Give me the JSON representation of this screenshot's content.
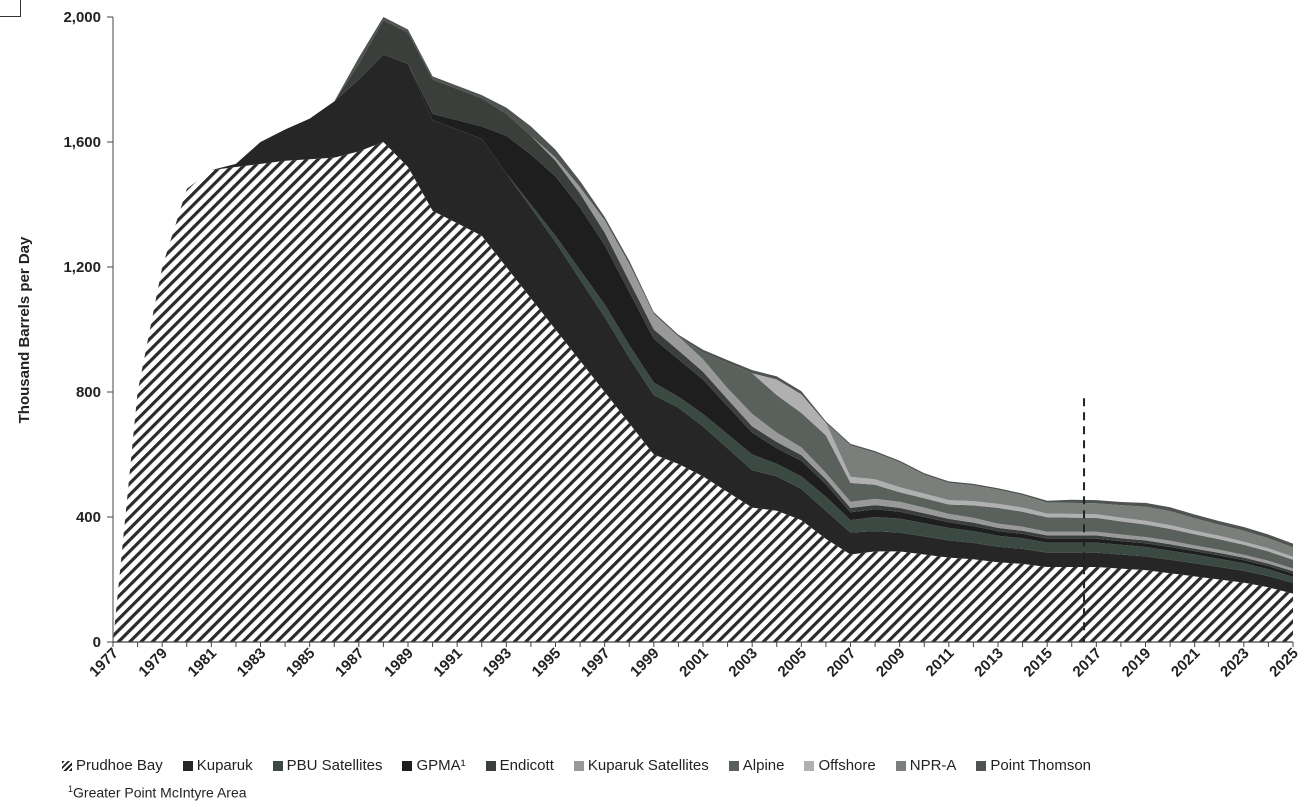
{
  "chart_data": {
    "type": "area",
    "stacked": true,
    "ylabel": "Thousand Barrels per Day",
    "xlabel": "",
    "ylim": [
      0,
      2000
    ],
    "yticks": [
      "0",
      "400",
      "800",
      "1,200",
      "1,600",
      "2,000"
    ],
    "ytick_values": [
      0,
      400,
      800,
      1200,
      1600,
      2000
    ],
    "xticks": [
      "1977",
      "1979",
      "1981",
      "1983",
      "1985",
      "1987",
      "1989",
      "1991",
      "1993",
      "1995",
      "1997",
      "1999",
      "2001",
      "2003",
      "2005",
      "2007",
      "2009",
      "2011",
      "2013",
      "2015",
      "2017",
      "2019",
      "2021",
      "2023",
      "2025"
    ],
    "x": [
      1977,
      1978,
      1979,
      1980,
      1981,
      1982,
      1983,
      1984,
      1985,
      1986,
      1987,
      1988,
      1989,
      1990,
      1991,
      1992,
      1993,
      1994,
      1995,
      1996,
      1997,
      1998,
      1999,
      2000,
      2001,
      2002,
      2003,
      2004,
      2005,
      2006,
      2007,
      2008,
      2009,
      2010,
      2011,
      2012,
      2013,
      2014,
      2015,
      2016,
      2017,
      2018,
      2019,
      2020,
      2021,
      2022,
      2023,
      2024,
      2025
    ],
    "forecast_start": 2016.5,
    "grid": false,
    "legend_position": "bottom",
    "series": [
      {
        "name": "Prudhoe Bay",
        "color": "#2a2a2a",
        "pattern": "hatch",
        "values": [
          0,
          800,
          1200,
          1450,
          1510,
          1520,
          1530,
          1540,
          1545,
          1550,
          1570,
          1600,
          1520,
          1380,
          1340,
          1300,
          1200,
          1100,
          1000,
          900,
          800,
          700,
          600,
          570,
          530,
          480,
          430,
          420,
          390,
          330,
          280,
          290,
          290,
          280,
          270,
          265,
          255,
          250,
          240,
          240,
          240,
          235,
          230,
          220,
          210,
          200,
          190,
          175,
          155
        ]
      },
      {
        "name": "Kuparuk",
        "color": "#262626",
        "values": [
          0,
          0,
          0,
          0,
          0,
          10,
          70,
          100,
          130,
          180,
          230,
          280,
          330,
          290,
          300,
          310,
          300,
          290,
          280,
          260,
          240,
          210,
          190,
          180,
          160,
          140,
          120,
          110,
          100,
          90,
          70,
          65,
          60,
          58,
          55,
          52,
          50,
          48,
          46,
          46,
          46,
          45,
          44,
          43,
          42,
          40,
          38,
          36,
          34
        ]
      },
      {
        "name": "PBU Satellites",
        "color": "#3a4a42",
        "values": [
          0,
          0,
          0,
          0,
          0,
          0,
          0,
          0,
          0,
          0,
          0,
          0,
          0,
          0,
          0,
          0,
          0,
          10,
          20,
          30,
          40,
          40,
          40,
          35,
          40,
          45,
          50,
          40,
          40,
          45,
          40,
          45,
          45,
          42,
          40,
          38,
          35,
          34,
          32,
          32,
          32,
          31,
          30,
          29,
          28,
          26,
          24,
          22,
          20
        ]
      },
      {
        "name": "GPMA¹",
        "color": "#1e1e1e",
        "values": [
          0,
          0,
          0,
          0,
          0,
          0,
          0,
          0,
          0,
          0,
          0,
          0,
          0,
          20,
          30,
          40,
          120,
          160,
          190,
          200,
          190,
          170,
          140,
          120,
          110,
          90,
          70,
          50,
          50,
          40,
          25,
          25,
          22,
          20,
          18,
          16,
          15,
          14,
          13,
          13,
          13,
          12,
          12,
          12,
          11,
          11,
          10,
          10,
          10
        ]
      },
      {
        "name": "Endicott",
        "color": "#3b3f3c",
        "values": [
          0,
          0,
          0,
          0,
          0,
          0,
          0,
          0,
          0,
          0,
          50,
          110,
          100,
          110,
          100,
          90,
          70,
          60,
          50,
          45,
          40,
          35,
          30,
          28,
          25,
          22,
          20,
          20,
          18,
          16,
          14,
          13,
          12,
          12,
          11,
          11,
          10,
          10,
          10,
          10,
          10,
          9,
          9,
          9,
          8,
          8,
          8,
          8,
          8
        ]
      },
      {
        "name": "Kuparuk Satellites",
        "color": "#999999",
        "values": [
          0,
          0,
          0,
          0,
          0,
          0,
          0,
          0,
          0,
          0,
          0,
          0,
          0,
          0,
          0,
          0,
          0,
          0,
          10,
          20,
          40,
          55,
          50,
          45,
          40,
          35,
          40,
          30,
          25,
          20,
          20,
          20,
          20,
          18,
          16,
          15,
          14,
          13,
          12,
          12,
          12,
          12,
          11,
          11,
          10,
          10,
          9,
          9,
          8
        ]
      },
      {
        "name": "Alpine",
        "color": "#5a615c",
        "values": [
          0,
          0,
          0,
          0,
          0,
          0,
          0,
          0,
          0,
          0,
          0,
          0,
          0,
          0,
          0,
          0,
          0,
          0,
          0,
          0,
          0,
          0,
          0,
          0,
          20,
          80,
          130,
          120,
          110,
          120,
          60,
          45,
          30,
          30,
          30,
          40,
          50,
          48,
          46,
          45,
          44,
          42,
          40,
          38,
          36,
          34,
          32,
          30,
          28
        ]
      },
      {
        "name": "Offshore",
        "color": "#b0b0b0",
        "values": [
          0,
          0,
          0,
          0,
          0,
          0,
          0,
          0,
          0,
          0,
          0,
          0,
          0,
          0,
          0,
          0,
          0,
          0,
          0,
          0,
          0,
          0,
          0,
          0,
          0,
          0,
          0,
          50,
          60,
          40,
          20,
          18,
          16,
          15,
          14,
          14,
          13,
          13,
          12,
          12,
          12,
          12,
          12,
          12,
          11,
          11,
          10,
          10,
          10
        ]
      },
      {
        "name": "NPR-A",
        "color": "#7b7f7c",
        "values": [
          0,
          0,
          0,
          0,
          0,
          0,
          0,
          0,
          0,
          0,
          0,
          0,
          0,
          0,
          0,
          0,
          0,
          0,
          0,
          0,
          0,
          0,
          0,
          0,
          0,
          0,
          0,
          0,
          0,
          0,
          100,
          85,
          80,
          60,
          55,
          50,
          45,
          40,
          35,
          35,
          35,
          40,
          45,
          45,
          40,
          35,
          35,
          32,
          30
        ]
      },
      {
        "name": "Point Thomson",
        "color": "#4f5451",
        "values": [
          0,
          0,
          0,
          0,
          0,
          0,
          0,
          0,
          0,
          0,
          20,
          10,
          10,
          10,
          10,
          10,
          20,
          30,
          25,
          20,
          10,
          10,
          5,
          5,
          10,
          10,
          10,
          10,
          10,
          5,
          5,
          5,
          5,
          5,
          5,
          5,
          5,
          5,
          6,
          10,
          10,
          10,
          12,
          12,
          12,
          12,
          12,
          12,
          12
        ]
      }
    ]
  },
  "legend": {
    "items": [
      {
        "label": "Prudhoe Bay",
        "marker": "hatch",
        "color": "#2a2a2a"
      },
      {
        "label": "Kuparuk",
        "color": "#262626"
      },
      {
        "label": "PBU Satellites",
        "color": "#3a4a42"
      },
      {
        "label": "GPMA¹",
        "color": "#1e1e1e"
      },
      {
        "label": "Endicott",
        "color": "#3b3f3c"
      },
      {
        "label": "Kuparuk Satellites",
        "color": "#999999"
      },
      {
        "label": "Alpine",
        "color": "#5a615c"
      },
      {
        "label": "Offshore",
        "color": "#b0b0b0"
      },
      {
        "label": "NPR-A",
        "color": "#7b7f7c"
      },
      {
        "label": "Point Thomson",
        "color": "#4f5451"
      }
    ]
  },
  "footnote": {
    "marker": "1",
    "text": "Greater Point McIntyre Area"
  }
}
